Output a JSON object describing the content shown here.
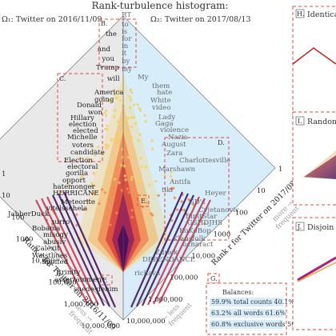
{
  "chart_data": {
    "type": "heatmap",
    "title": "Rank-turbulence histogram:",
    "system1": "Ω₁: Twitter on 2016/11/09",
    "system2": "Ω₂: Twitter on 2017/08/13",
    "xlabel": "Rank r for Twitter on 2017/08/13",
    "ylabel": "Rank r for Twitter on 2016/11/09",
    "x_ticks": [
      "1",
      "10",
      "100",
      "1000",
      "10,000",
      "100,000",
      "1,000,000",
      "10,000,000"
    ],
    "y_ticks": [
      "1",
      "10",
      "100",
      "1000",
      "10,000",
      "100,000",
      "1,000,000",
      "10,000,000"
    ],
    "annotations_right": [
      "more →",
      "frequent"
    ],
    "annotations_bottom_left": [
      "less →",
      "frequent"
    ],
    "annotations_bottom_right": [
      "← less",
      "frequent"
    ],
    "words_left": [
      "the",
      "and",
      "you",
      "Trump",
      "will",
      "America",
      "going",
      "Donald",
      "won",
      "Hillary",
      "election",
      "elected",
      "Michelle",
      "voters",
      "candidate",
      "Election",
      "electoral",
      "gorilla",
      "opport",
      "hatemonger",
      "HURRICANE",
      "Meteorite",
      "vitelssehela",
      "JabberDuck",
      "surro",
      "Bobama",
      "misogy",
      "abusiv",
      "Calexit",
      "Waistlines",
      "Spoffed",
      "Jtrinity",
      "assertainmen",
      "suede-denim"
    ],
    "words_right": [
      "RT",
      "to",
      "is",
      "for",
      "in",
      "it",
      "by",
      "my",
      "My",
      "them",
      "hate",
      "White",
      "video",
      "Lady",
      "Gaga",
      "violence",
      "Nazis",
      "August",
      "Zara",
      "Charlottesville",
      "Marshawn",
      "Antifa",
      "tiki",
      "Heyer",
      "GD's",
      "Cvjetanovic",
      "FirstStar",
      "GSHDJHS",
      "KoKoBop",
      "Klansfolk",
      "ucharact",
      "Zdrick",
      "DEPENDANCE",
      "richava"
    ],
    "panel_labels": [
      "B.",
      "C.",
      "D.",
      "E.",
      "F.",
      "G."
    ],
    "side_panels": [
      "H.",
      "I.",
      "J."
    ],
    "side_panel_titles": [
      "Identica",
      "Randomi",
      "Disjoin"
    ],
    "balances": {
      "title": "Balances:",
      "rows": [
        "59.9% total counts 40.1%",
        "63.2% all words 61.6%",
        "60.8% exclusive words 59.8%"
      ]
    },
    "colors": {
      "background_left": "#e8e8e8",
      "background_right": "#d6ecf8",
      "heat_low": "#f6d16b",
      "heat_mid": "#e8533c",
      "heat_high": "#3b0b5e",
      "box": "#e0493a"
    }
  }
}
